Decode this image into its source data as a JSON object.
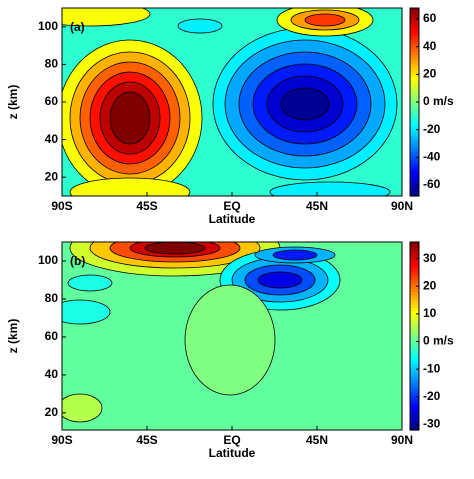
{
  "chart_data": [
    {
      "type": "contour",
      "panel_label": "(a)",
      "xlabel": "Latitude",
      "ylabel": "z (km)",
      "xlim": [
        -90,
        90
      ],
      "xticks": [
        {
          "value": -90,
          "label": "90S"
        },
        {
          "value": -45,
          "label": "45S"
        },
        {
          "value": 0,
          "label": "EQ"
        },
        {
          "value": 45,
          "label": "45N"
        },
        {
          "value": 90,
          "label": "90N"
        }
      ],
      "ylim": [
        10,
        110
      ],
      "yticks": [
        20,
        40,
        60,
        80,
        100
      ],
      "clim": [
        -68,
        68
      ],
      "cticks": [
        -60,
        -40,
        -20,
        {
          "value": 0,
          "label": "0 m/s"
        },
        20,
        40,
        60
      ]
    },
    {
      "type": "contour",
      "panel_label": "(b)",
      "xlabel": "Latitude",
      "ylabel": "z (km)",
      "xlim": [
        -90,
        90
      ],
      "xticks": [
        {
          "value": -90,
          "label": "90S"
        },
        {
          "value": -45,
          "label": "45S"
        },
        {
          "value": 0,
          "label": "EQ"
        },
        {
          "value": 45,
          "label": "45N"
        },
        {
          "value": 90,
          "label": "90N"
        }
      ],
      "ylim": [
        11,
        110
      ],
      "yticks": [
        20,
        40,
        60,
        80,
        100
      ],
      "clim": [
        -32,
        36
      ],
      "cticks": [
        -30,
        -20,
        -10,
        {
          "value": 0,
          "label": "0 m/s"
        },
        10,
        20,
        30
      ]
    }
  ]
}
